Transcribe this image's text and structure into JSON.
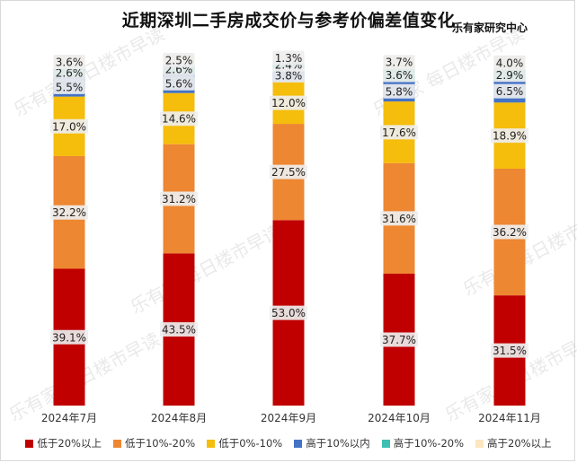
{
  "title": "近期深圳二手房成交价与参考价偏差值变化",
  "source": "乐有家研究中心",
  "watermark": {
    "text": "每日楼市早读",
    "brand": "乐有家"
  },
  "chart_data": {
    "type": "bar",
    "stacked": true,
    "categories": [
      "2024年7月",
      "2024年8月",
      "2024年9月",
      "2024年10月",
      "2024年11月"
    ],
    "ylim": [
      0,
      100
    ],
    "legend_position": "bottom",
    "grid": false,
    "series": [
      {
        "name": "低于20%以上",
        "color": "#c00000",
        "values": [
          39.1,
          43.5,
          53.0,
          37.7,
          31.5
        ],
        "labels": [
          "39.1%",
          "43.5%",
          "53.0%",
          "37.7%",
          "31.5%"
        ]
      },
      {
        "name": "低于10%-20%",
        "color": "#ed8732",
        "values": [
          32.2,
          31.2,
          27.5,
          31.6,
          36.2
        ],
        "labels": [
          "32.2%",
          "31.2%",
          "27.5%",
          "31.6%",
          "36.2%"
        ]
      },
      {
        "name": "低于0%-10%",
        "color": "#f5bd0c",
        "values": [
          17.0,
          14.6,
          12.0,
          17.6,
          18.9
        ],
        "labels": [
          "17.0%",
          "14.6%",
          "12.0%",
          "17.6%",
          "18.9%"
        ]
      },
      {
        "name": "高于10%以内",
        "color": "#4472c4",
        "values": [
          5.5,
          5.6,
          3.8,
          5.8,
          6.5
        ],
        "labels": [
          "5.5%",
          "5.6%",
          "3.8%",
          "5.8%",
          "6.5%"
        ]
      },
      {
        "name": "高于10%-20%",
        "color": "#3ebfb5",
        "values": [
          2.6,
          2.6,
          2.4,
          3.6,
          2.9
        ],
        "labels": [
          "2.6%",
          "2.6%",
          "2.4%",
          "3.6%",
          "2.9%"
        ]
      },
      {
        "name": "高于20%以上",
        "color": "#fce7c0",
        "values": [
          3.6,
          2.5,
          1.3,
          3.7,
          4.0
        ],
        "labels": [
          "3.6%",
          "2.5%",
          "1.3%",
          "3.7%",
          "4.0%"
        ]
      }
    ]
  }
}
